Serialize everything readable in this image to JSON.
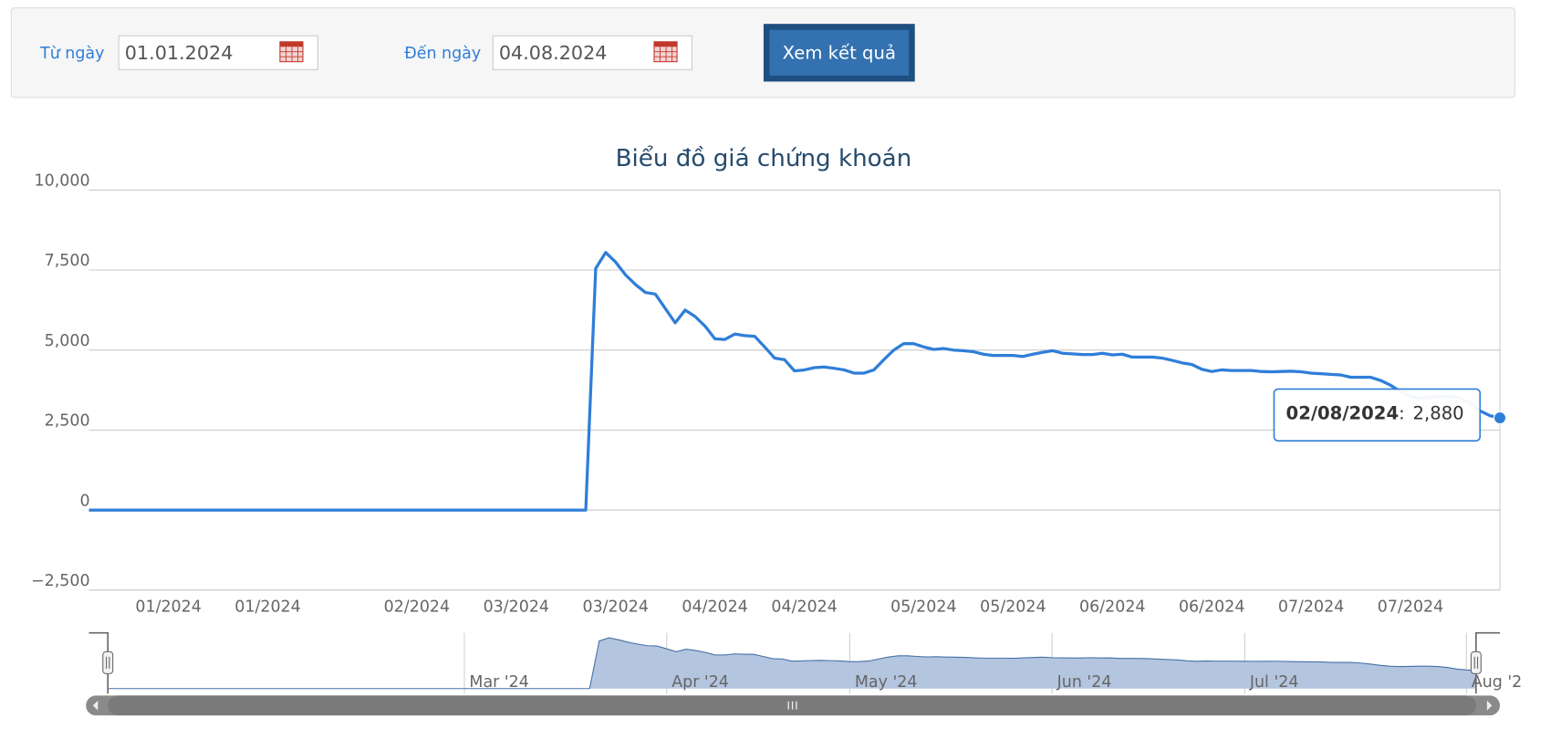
{
  "form": {
    "from_label": "Từ ngày",
    "from_value": "01.01.2024",
    "to_label": "Đến ngày",
    "to_value": "04.08.2024",
    "button": "Xem kết quả"
  },
  "chart_data": {
    "type": "line",
    "title": "Biểu đồ giá chứng khoán",
    "color": "#2f7ed8",
    "values": [
      0,
      0,
      0,
      0,
      0,
      0,
      0,
      0,
      0,
      0,
      0,
      0,
      0,
      0,
      0,
      0,
      0,
      0,
      0,
      0,
      0,
      0,
      0,
      0,
      0,
      0,
      0,
      0,
      0,
      0,
      0,
      0,
      0,
      0,
      0,
      0,
      0,
      0,
      0,
      0,
      0,
      0,
      0,
      0,
      0,
      0,
      0,
      0,
      0,
      0,
      0,
      7550,
      8050,
      7750,
      7350,
      7050,
      6800,
      6750,
      6300,
      5850,
      6250,
      6050,
      5750,
      5350,
      5330,
      5500,
      5450,
      5430,
      5100,
      4750,
      4700,
      4350,
      4380,
      4450,
      4470,
      4430,
      4380,
      4280,
      4280,
      4380,
      4700,
      5000,
      5200,
      5200,
      5100,
      5020,
      5050,
      5000,
      4980,
      4950,
      4870,
      4830,
      4830,
      4830,
      4800,
      4870,
      4930,
      4980,
      4900,
      4880,
      4860,
      4860,
      4900,
      4850,
      4870,
      4780,
      4780,
      4780,
      4750,
      4680,
      4600,
      4550,
      4400,
      4330,
      4380,
      4360,
      4360,
      4360,
      4330,
      4320,
      4330,
      4340,
      4320,
      4280,
      4260,
      4240,
      4220,
      4150,
      4150,
      4150,
      4050,
      3900,
      3700,
      3550,
      3500,
      3520,
      3550,
      3550,
      3500,
      3350,
      3100,
      2950,
      2880
    ],
    "xlim": [
      0,
      142
    ],
    "xticks": [
      {
        "value": 8,
        "label": "01/2024"
      },
      {
        "value": 18,
        "label": "01/2024"
      },
      {
        "value": 33,
        "label": "02/2024"
      },
      {
        "value": 43,
        "label": "03/2024"
      },
      {
        "value": 53,
        "label": "03/2024"
      },
      {
        "value": 63,
        "label": "04/2024"
      },
      {
        "value": 72,
        "label": "04/2024"
      },
      {
        "value": 84,
        "label": "05/2024"
      },
      {
        "value": 93,
        "label": "05/2024"
      },
      {
        "value": 103,
        "label": "06/2024"
      },
      {
        "value": 113,
        "label": "06/2024"
      },
      {
        "value": 123,
        "label": "07/2024"
      },
      {
        "value": 133,
        "label": "07/2024"
      }
    ],
    "ylim": [
      -2500,
      10000
    ],
    "yticks": [
      {
        "value": -2500,
        "label": "−2,500"
      },
      0,
      {
        "value": 2500,
        "label": "2,500"
      },
      {
        "value": 5000,
        "label": "5,000"
      },
      {
        "value": 7500,
        "label": "7,500"
      },
      {
        "value": 10000,
        "label": "10,000"
      }
    ],
    "grid": true,
    "tooltip": {
      "x": "02/08/2024",
      "separator": ":",
      "value_label": "2,880"
    },
    "navigator": {
      "fill": "#b4c5df",
      "stroke": "#4572a7",
      "xticks": [
        {
          "value": 37,
          "label": "Mar '24"
        },
        {
          "value": 58,
          "label": "Apr '24"
        },
        {
          "value": 77,
          "label": "May '24"
        },
        {
          "value": 98,
          "label": "Jun '24"
        },
        {
          "value": 118,
          "label": "Jul '24"
        },
        {
          "value": 141,
          "label": "Aug '2"
        }
      ]
    }
  }
}
